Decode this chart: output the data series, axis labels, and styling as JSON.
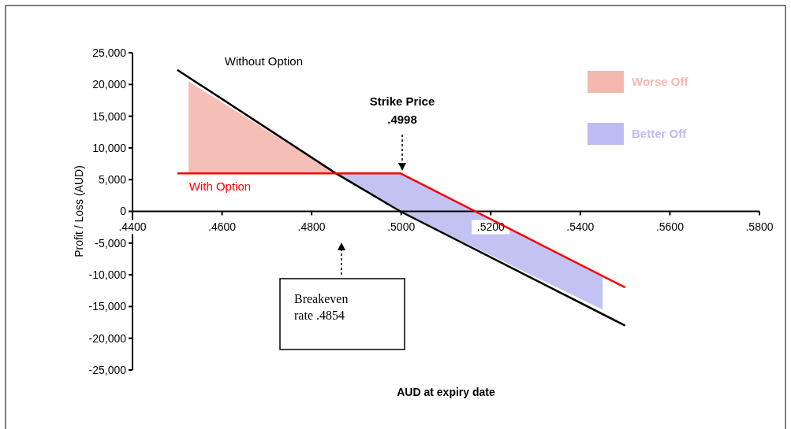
{
  "chart_data": {
    "type": "line",
    "xlabel": "AUD at expiry date",
    "ylabel": "Profit / Loss  (AUD)",
    "xlim": [
      0.44,
      0.58
    ],
    "xticks": [
      {
        "value": 0.44,
        "label": ".4400"
      },
      {
        "value": 0.46,
        "label": ".4600"
      },
      {
        "value": 0.48,
        "label": ".4800"
      },
      {
        "value": 0.5,
        "label": ".5000"
      },
      {
        "value": 0.52,
        "label": ".5200"
      },
      {
        "value": 0.54,
        "label": ".5400"
      },
      {
        "value": 0.56,
        "label": ".5600"
      },
      {
        "value": 0.58,
        "label": ".5800"
      }
    ],
    "ylim": [
      -25000,
      25000
    ],
    "yticks": [
      {
        "value": -25000,
        "label": "-25,000"
      },
      {
        "value": -20000,
        "label": "-20,000"
      },
      {
        "value": -15000,
        "label": "-15,000"
      },
      {
        "value": -10000,
        "label": "-10,000"
      },
      {
        "value": -5000,
        "label": "-5,000"
      },
      0,
      {
        "value": 5000,
        "label": "5,000"
      },
      {
        "value": 10000,
        "label": "10,000"
      },
      {
        "value": 15000,
        "label": "15,000"
      },
      {
        "value": 20000,
        "label": "20,000"
      },
      {
        "value": 25000,
        "label": "25,000"
      }
    ],
    "grid": false,
    "legend": "top right",
    "series": [
      {
        "name": "Worse Off",
        "type": "area",
        "color": "#f4b8b0",
        "x": [
          0.4525,
          0.4854,
          0.4525
        ],
        "values": [
          20500,
          6000,
          6000
        ]
      },
      {
        "name": "Better Off",
        "type": "area",
        "color": "#bcbcf2",
        "x": [
          0.4854,
          0.4998,
          0.545,
          0.545,
          0.4998
        ],
        "values": [
          6000,
          6000,
          -10200,
          -15500,
          0
        ]
      },
      {
        "name": "Without Option",
        "color": "#000000",
        "x": [
          0.45,
          0.4854,
          0.4998,
          0.55
        ],
        "values": [
          22300,
          6000,
          0,
          -18000
        ]
      },
      {
        "name": "With Option",
        "color": "#ff0000",
        "x": [
          0.45,
          0.4998,
          0.55
        ],
        "values": [
          6000,
          6000,
          -12000
        ]
      }
    ],
    "annotations": [
      "Strike Price\n.4998",
      "Breakeven\nrate .4854"
    ]
  }
}
